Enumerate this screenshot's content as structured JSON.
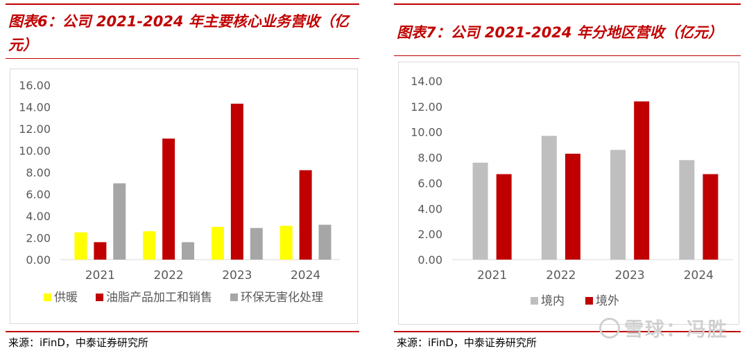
{
  "panels": [
    {
      "title": "图表6：公司 2021-2024 年主要核心业务营收（亿元）",
      "source": "来源：iFinD，中泰证券研究所"
    },
    {
      "title": "图表7：公司 2021-2024 年分地区营收（亿元）",
      "source": "来源：iFinD，中泰证券研究所"
    }
  ],
  "watermark": "雪球：冯胜",
  "chart_data": [
    {
      "type": "bar",
      "categories": [
        "2021",
        "2022",
        "2023",
        "2024"
      ],
      "series": [
        {
          "name": "供暖",
          "color": "#ffff00",
          "values": [
            2.5,
            2.6,
            3.0,
            3.1
          ]
        },
        {
          "name": "油脂产品加工和销售",
          "color": "#c00000",
          "values": [
            1.6,
            11.1,
            14.3,
            8.2
          ]
        },
        {
          "name": "环保无害化处理",
          "color": "#a6a6a6",
          "values": [
            7.0,
            1.6,
            2.9,
            3.2
          ]
        }
      ],
      "yticks": [
        "0.00",
        "2.00",
        "4.00",
        "6.00",
        "8.00",
        "10.00",
        "12.00",
        "14.00",
        "16.00"
      ],
      "ylim": [
        0,
        16
      ],
      "legend_position": "bottom",
      "grid": false
    },
    {
      "type": "bar",
      "categories": [
        "2021",
        "2022",
        "2023",
        "2024"
      ],
      "series": [
        {
          "name": "境内",
          "color": "#bfbfbf",
          "values": [
            7.6,
            9.7,
            8.6,
            7.8
          ]
        },
        {
          "name": "境外",
          "color": "#c00000",
          "values": [
            6.7,
            8.3,
            12.4,
            6.7
          ]
        }
      ],
      "yticks": [
        "0.00",
        "2.00",
        "4.00",
        "6.00",
        "8.00",
        "10.00",
        "12.00",
        "14.00"
      ],
      "ylim": [
        0,
        14
      ],
      "legend_position": "bottom",
      "grid": false
    }
  ]
}
